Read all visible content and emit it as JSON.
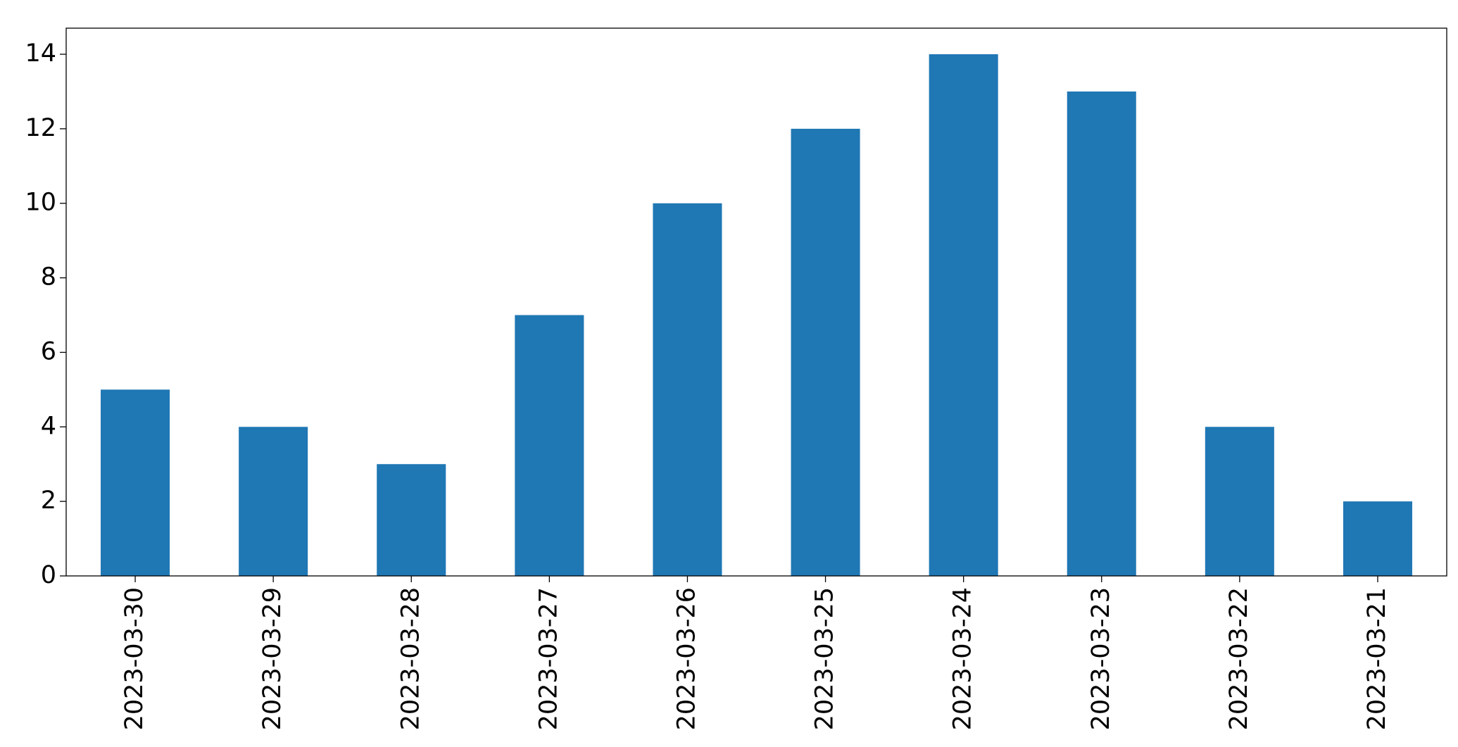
{
  "chart_data": {
    "type": "bar",
    "categories": [
      "2023-03-30",
      "2023-03-29",
      "2023-03-28",
      "2023-03-27",
      "2023-03-26",
      "2023-03-25",
      "2023-03-24",
      "2023-03-23",
      "2023-03-22",
      "2023-03-21"
    ],
    "values": [
      5,
      4,
      3,
      7,
      10,
      12,
      14,
      13,
      4,
      2
    ],
    "color": "#1f77b4",
    "ylim": [
      0,
      14.7
    ],
    "yticks": [
      0,
      2,
      4,
      6,
      8,
      10,
      12,
      14
    ],
    "grid": false
  }
}
